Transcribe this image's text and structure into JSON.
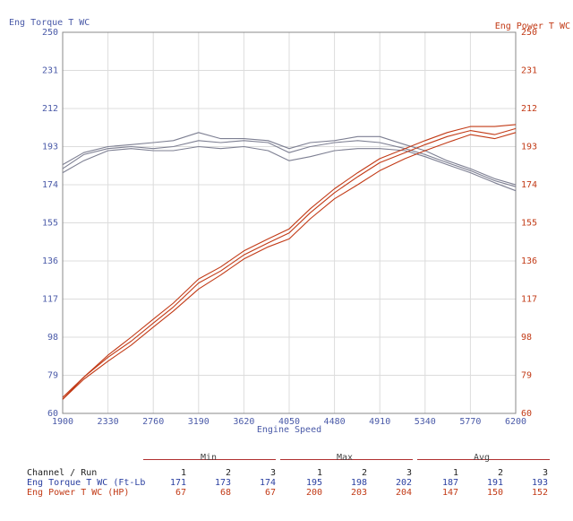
{
  "chart_data": {
    "type": "line",
    "xlabel": "Engine Speed",
    "ylabel_left": "Eng Torque T WC",
    "ylabel_right": "Eng Power T WC",
    "xlim": [
      1900,
      6200
    ],
    "ylim": [
      60,
      250
    ],
    "x_ticks": [
      "1900",
      "2330",
      "2760",
      "3190",
      "3620",
      "4050",
      "4480",
      "4910",
      "5340",
      "5770",
      "6200"
    ],
    "y_ticks": [
      "60",
      "79",
      "98",
      "117",
      "136",
      "155",
      "174",
      "193",
      "212",
      "231",
      "250"
    ],
    "grid": true,
    "colors": {
      "torque": "#7d7f92",
      "power": "#c23a16",
      "left_axis": "#4a5aa8",
      "right_axis": "#c23a16",
      "grid": "#dcdcdc"
    },
    "series": [
      {
        "group": "torque",
        "run": "1",
        "x": [
          1900,
          2100,
          2330,
          2550,
          2760,
          2950,
          3190,
          3400,
          3620,
          3850,
          4050,
          4250,
          4480,
          4700,
          4910,
          5150,
          5340,
          5550,
          5770,
          6000,
          6200
        ],
        "y": [
          180,
          186,
          191,
          192,
          191,
          191,
          193,
          192,
          193,
          191,
          186,
          188,
          191,
          192,
          192,
          191,
          188,
          184,
          180,
          175,
          171
        ]
      },
      {
        "group": "torque",
        "run": "2",
        "x": [
          1900,
          2100,
          2330,
          2550,
          2760,
          2950,
          3190,
          3400,
          3620,
          3850,
          4050,
          4250,
          4480,
          4700,
          4910,
          5150,
          5340,
          5550,
          5770,
          6000,
          6200
        ],
        "y": [
          182,
          189,
          192,
          193,
          192,
          193,
          196,
          195,
          196,
          195,
          190,
          193,
          195,
          196,
          195,
          192,
          189,
          185,
          181,
          176,
          173
        ]
      },
      {
        "group": "torque",
        "run": "3",
        "x": [
          1900,
          2100,
          2330,
          2550,
          2760,
          2950,
          3190,
          3400,
          3620,
          3850,
          4050,
          4250,
          4480,
          4700,
          4910,
          5150,
          5340,
          5550,
          5770,
          6000,
          6200
        ],
        "y": [
          184,
          190,
          193,
          194,
          195,
          196,
          200,
          197,
          197,
          196,
          192,
          195,
          196,
          198,
          198,
          194,
          191,
          186,
          182,
          177,
          174
        ]
      },
      {
        "group": "power",
        "run": "1",
        "x": [
          1900,
          2100,
          2330,
          2550,
          2760,
          2950,
          3190,
          3400,
          3620,
          3850,
          4050,
          4250,
          4480,
          4700,
          4910,
          5150,
          5340,
          5550,
          5770,
          6000,
          6200
        ],
        "y": [
          67,
          77,
          86,
          94,
          103,
          111,
          122,
          129,
          137,
          143,
          147,
          157,
          167,
          174,
          181,
          187,
          191,
          195,
          199,
          197,
          200
        ]
      },
      {
        "group": "power",
        "run": "2",
        "x": [
          1900,
          2100,
          2330,
          2550,
          2760,
          2950,
          3190,
          3400,
          3620,
          3850,
          4050,
          4250,
          4480,
          4700,
          4910,
          5150,
          5340,
          5550,
          5770,
          6000,
          6200
        ],
        "y": [
          68,
          78,
          88,
          96,
          105,
          113,
          125,
          131,
          139,
          145,
          150,
          160,
          170,
          178,
          185,
          190,
          194,
          198,
          201,
          199,
          202
        ]
      },
      {
        "group": "power",
        "run": "3",
        "x": [
          1900,
          2100,
          2330,
          2550,
          2760,
          2950,
          3190,
          3400,
          3620,
          3850,
          4050,
          4250,
          4480,
          4700,
          4910,
          5150,
          5340,
          5550,
          5770,
          6000,
          6200
        ],
        "y": [
          67,
          78,
          89,
          98,
          107,
          115,
          127,
          133,
          141,
          147,
          152,
          162,
          172,
          180,
          187,
          192,
          196,
          200,
          203,
          203,
          204
        ]
      }
    ]
  },
  "stats": {
    "headers": {
      "min": "Min",
      "max": "Max",
      "avg": "Avg"
    },
    "channel_label": "Channel / Run",
    "runs": [
      "1",
      "2",
      "3"
    ],
    "rows": [
      {
        "label": "Eng Torque T WC (Ft-Lb",
        "min": [
          "171",
          "173",
          "174"
        ],
        "max": [
          "195",
          "198",
          "202"
        ],
        "avg": [
          "187",
          "191",
          "193"
        ]
      },
      {
        "label": "Eng Power T WC (HP)",
        "min": [
          "67",
          "68",
          "67"
        ],
        "max": [
          "200",
          "203",
          "204"
        ],
        "avg": [
          "147",
          "150",
          "152"
        ]
      }
    ]
  }
}
